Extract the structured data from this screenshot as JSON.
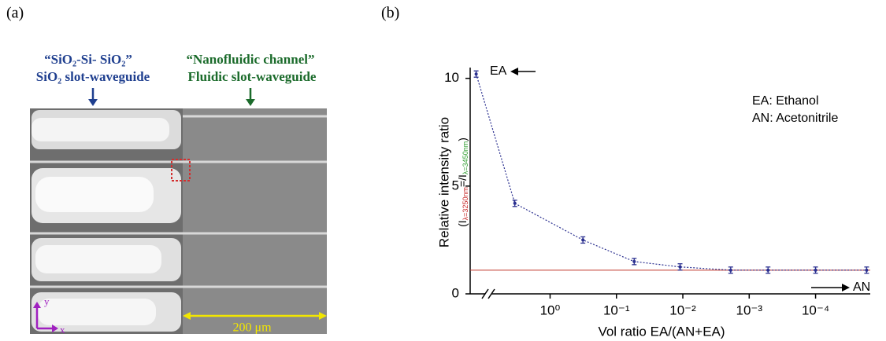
{
  "panel_labels": [
    "(a)",
    "(b)"
  ],
  "panel_a": {
    "left_title_1": "“SiO₂-Si- SiO₂”",
    "left_title_2": "SiO₂ slot-waveguide",
    "right_title_1": "“Nanofluidic channel”",
    "right_title_2": "Fluidic slot-waveguide",
    "scale_bar": "200 μm",
    "axis_y": "y",
    "axis_x": "x"
  },
  "chart_data": {
    "type": "line",
    "x_scale": "log",
    "x_axis_break": true,
    "y_label": "Relative intensity ratio",
    "y_sublabel": [
      "(I",
      "λ=3250nm",
      "=/I",
      "λ=3450nm",
      ")"
    ],
    "x_label": "Vol  ratio EA/(AN+EA)",
    "x": [
      13,
      3.4,
      0.32,
      0.054,
      0.011,
      0.0019,
      0.00052,
      0.0001,
      1.7e-05
    ],
    "values": [
      10.2,
      4.2,
      2.5,
      1.5,
      1.25,
      1.1,
      1.1,
      1.1,
      1.1
    ],
    "color": "#2a2f8f",
    "reference_line": {
      "value": 1.1,
      "color": "#c0392b"
    },
    "xlim": [
      16,
      1.5e-05
    ],
    "xticks": [
      {
        "value": 1,
        "label": "10⁰"
      },
      {
        "value": 0.1,
        "label": "10⁻¹"
      },
      {
        "value": 0.01,
        "label": "10⁻²"
      },
      {
        "value": 0.001,
        "label": "10⁻³"
      },
      {
        "value": 0.0001,
        "label": "10⁻⁴"
      }
    ],
    "ylim": [
      0,
      10.5
    ],
    "yticks": [
      0,
      5,
      10
    ],
    "annotations": [
      "EA",
      "AN",
      "EA: Ethanol",
      "AN: Acetonitrile"
    ]
  }
}
